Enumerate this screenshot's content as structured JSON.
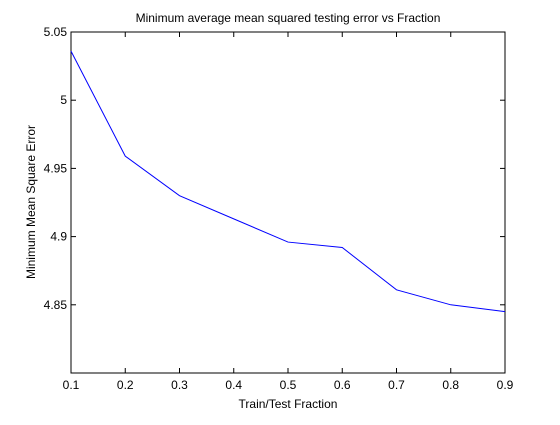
{
  "chart_data": {
    "type": "line",
    "title": "Minimum average mean squared testing error vs Fraction",
    "xlabel": "Train/Test Fraction",
    "ylabel": "Minimum Mean Square Error",
    "xlim": [
      0.1,
      0.9
    ],
    "ylim": [
      4.8,
      5.05
    ],
    "xticks": [
      0.1,
      0.2,
      0.3,
      0.4,
      0.5,
      0.6,
      0.7,
      0.8,
      0.9
    ],
    "xtick_labels": [
      "0.1",
      "0.2",
      "0.3",
      "0.4",
      "0.5",
      "0.6",
      "0.7",
      "0.8",
      "0.9"
    ],
    "yticks": [
      4.85,
      4.9,
      4.95,
      5,
      5.05
    ],
    "ytick_labels": [
      "4.85",
      "4.9",
      "4.95",
      "5",
      "5.05"
    ],
    "grid": false,
    "legend": false,
    "series": [
      {
        "color": "#0000ff",
        "x": [
          0.1,
          0.2,
          0.3,
          0.4,
          0.5,
          0.6,
          0.7,
          0.8,
          0.9
        ],
        "y": [
          5.036,
          4.959,
          4.93,
          4.913,
          4.896,
          4.892,
          4.861,
          4.85,
          4.845
        ]
      }
    ]
  }
}
